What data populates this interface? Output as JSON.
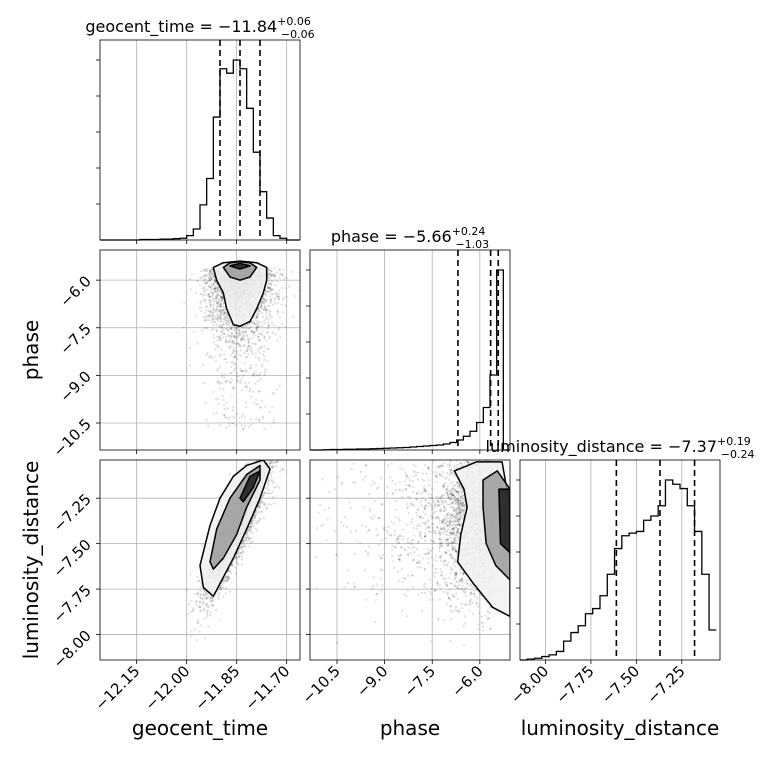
{
  "chart_data": {
    "type": "corner",
    "parameters": [
      "geocent_time",
      "phase",
      "luminosity_distance"
    ],
    "axis_labels": {
      "geocent_time": "geocent_time",
      "phase": "phase",
      "luminosity_distance": "luminosity_distance"
    },
    "ranges": {
      "geocent_time": [
        -12.26,
        -11.66
      ],
      "phase": [
        -11.35,
        -5.05
      ],
      "luminosity_distance": [
        -8.14,
        -7.04
      ]
    },
    "ticks": {
      "geocent_time": [
        -12.15,
        -12.0,
        -11.85,
        -11.7
      ],
      "phase": [
        -10.5,
        -9.0,
        -7.5,
        -6.0
      ],
      "luminosity_distance": [
        -8.0,
        -7.75,
        -7.5,
        -7.25
      ]
    },
    "tick_labels": {
      "geocent_time": [
        "−12.15",
        "−12.00",
        "−11.85",
        "−11.70"
      ],
      "phase": [
        "−10.5",
        "−9.0",
        "−7.5",
        "−6.0"
      ],
      "luminosity_distance": [
        "−8.00",
        "−7.75",
        "−7.50",
        "−7.25"
      ]
    },
    "grid": true,
    "titles": {
      "geocent_time": {
        "name": "geocent_time",
        "median": "−11.84",
        "plus": "+0.06",
        "minus": "−0.06"
      },
      "phase": {
        "name": "phase",
        "median": "−5.66",
        "plus": "+0.24",
        "minus": "−1.03"
      },
      "luminosity_distance": {
        "name": "luminosity_distance",
        "median": "−7.37",
        "plus": "+0.19",
        "minus": "−0.24"
      }
    },
    "quantile_lines": {
      "geocent_time": [
        -11.9,
        -11.84,
        -11.78
      ],
      "phase": [
        -6.69,
        -5.66,
        -5.42
      ],
      "luminosity_distance": [
        -7.61,
        -7.37,
        -7.18
      ]
    },
    "histograms": {
      "geocent_time": {
        "edges": [
          -12.26,
          -12.24,
          -12.22,
          -12.2,
          -12.18,
          -12.16,
          -12.14,
          -12.12,
          -12.1,
          -12.08,
          -12.06,
          -12.04,
          -12.02,
          -12.0,
          -11.98,
          -11.96,
          -11.94,
          -11.92,
          -11.9,
          -11.88,
          -11.86,
          -11.84,
          -11.82,
          -11.8,
          -11.78,
          -11.76,
          -11.74,
          -11.72,
          -11.7,
          -11.68,
          -11.66
        ],
        "counts": [
          0,
          0,
          0,
          0,
          0,
          0,
          1,
          1,
          1,
          2,
          2,
          3,
          4,
          10,
          25,
          80,
          140,
          280,
          390,
          380,
          410,
          390,
          300,
          200,
          110,
          50,
          10,
          4,
          0,
          0
        ]
      },
      "phase": {
        "edges": [
          -11.35,
          -11.14,
          -10.93,
          -10.72,
          -10.51,
          -10.3,
          -10.09,
          -9.88,
          -9.67,
          -9.46,
          -9.25,
          -9.04,
          -8.83,
          -8.62,
          -8.41,
          -8.2,
          -7.99,
          -7.78,
          -7.57,
          -7.36,
          -7.15,
          -6.94,
          -6.73,
          -6.52,
          -6.31,
          -6.1,
          -5.89,
          -5.68,
          -5.47,
          -5.26,
          -5.05
        ],
        "counts": [
          0,
          0,
          1,
          2,
          2,
          3,
          3,
          4,
          4,
          5,
          6,
          7,
          8,
          9,
          10,
          12,
          14,
          16,
          18,
          20,
          24,
          30,
          40,
          55,
          75,
          110,
          170,
          300,
          720,
          0
        ]
      },
      "luminosity_distance": {
        "edges": [
          -8.14,
          -8.1,
          -8.06,
          -8.02,
          -7.98,
          -7.94,
          -7.9,
          -7.86,
          -7.82,
          -7.78,
          -7.74,
          -7.7,
          -7.66,
          -7.62,
          -7.58,
          -7.54,
          -7.5,
          -7.46,
          -7.42,
          -7.38,
          -7.34,
          -7.3,
          -7.26,
          -7.22,
          -7.18,
          -7.14,
          -7.1,
          -7.06
        ],
        "counts": [
          0,
          1,
          2,
          4,
          6,
          10,
          22,
          32,
          40,
          54,
          60,
          75,
          100,
          130,
          145,
          148,
          150,
          163,
          168,
          180,
          210,
          205,
          200,
          180,
          150,
          100,
          35
        ]
      }
    },
    "samples": {
      "geocent_time_vs_phase": {
        "x_center": -11.84,
        "x_spread": 0.05,
        "y_peak": -5.6,
        "y_tail_min": -10.7
      },
      "geocent_time_vs_luminosity_distance": {
        "x_center": -11.84,
        "y_center": -7.37,
        "correlation": 0.9
      },
      "phase_vs_luminosity_distance": {
        "x_peak": -5.6,
        "y_center": -7.37,
        "y_spread": 0.22
      }
    },
    "contours": {
      "geocent_time_vs_phase": [
        [
          [
            -11.92,
            -5.6
          ],
          [
            -11.91,
            -6.0
          ],
          [
            -11.89,
            -6.4
          ],
          [
            -11.88,
            -6.9
          ],
          [
            -11.86,
            -7.4
          ],
          [
            -11.84,
            -7.45
          ],
          [
            -11.81,
            -7.3
          ],
          [
            -11.79,
            -6.9
          ],
          [
            -11.77,
            -6.4
          ],
          [
            -11.76,
            -6.0
          ],
          [
            -11.76,
            -5.6
          ],
          [
            -11.79,
            -5.45
          ],
          [
            -11.84,
            -5.4
          ],
          [
            -11.89,
            -5.45
          ]
        ],
        [
          [
            -11.89,
            -5.6
          ],
          [
            -11.87,
            -5.9
          ],
          [
            -11.84,
            -6.0
          ],
          [
            -11.81,
            -5.9
          ],
          [
            -11.79,
            -5.6
          ],
          [
            -11.81,
            -5.45
          ],
          [
            -11.84,
            -5.42
          ],
          [
            -11.87,
            -5.45
          ]
        ],
        [
          [
            -11.87,
            -5.55
          ],
          [
            -11.84,
            -5.65
          ],
          [
            -11.81,
            -5.55
          ],
          [
            -11.84,
            -5.47
          ]
        ]
      ],
      "geocent_time_vs_luminosity_distance": [
        [
          [
            -11.96,
            -7.62
          ],
          [
            -11.93,
            -7.4
          ],
          [
            -11.9,
            -7.25
          ],
          [
            -11.86,
            -7.13
          ],
          [
            -11.82,
            -7.07
          ],
          [
            -11.77,
            -7.04
          ],
          [
            -11.75,
            -7.09
          ],
          [
            -11.78,
            -7.25
          ],
          [
            -11.82,
            -7.42
          ],
          [
            -11.86,
            -7.58
          ],
          [
            -11.9,
            -7.72
          ],
          [
            -11.92,
            -7.79
          ],
          [
            -11.95,
            -7.74
          ]
        ],
        [
          [
            -11.93,
            -7.6
          ],
          [
            -11.91,
            -7.42
          ],
          [
            -11.87,
            -7.25
          ],
          [
            -11.82,
            -7.12
          ],
          [
            -11.78,
            -7.07
          ],
          [
            -11.78,
            -7.15
          ],
          [
            -11.82,
            -7.3
          ],
          [
            -11.85,
            -7.45
          ],
          [
            -11.89,
            -7.58
          ],
          [
            -11.92,
            -7.64
          ]
        ],
        [
          [
            -11.84,
            -7.25
          ],
          [
            -11.81,
            -7.13
          ],
          [
            -11.78,
            -7.1
          ],
          [
            -11.8,
            -7.19
          ],
          [
            -11.83,
            -7.27
          ]
        ]
      ],
      "phase_vs_luminosity_distance": [
        [
          [
            -6.8,
            -7.1
          ],
          [
            -6.1,
            -7.05
          ],
          [
            -5.3,
            -7.05
          ],
          [
            -5.05,
            -7.3
          ],
          [
            -5.05,
            -7.9
          ],
          [
            -5.6,
            -7.85
          ],
          [
            -6.2,
            -7.72
          ],
          [
            -6.7,
            -7.6
          ],
          [
            -6.6,
            -7.45
          ],
          [
            -6.4,
            -7.3
          ],
          [
            -6.5,
            -7.2
          ]
        ],
        [
          [
            -5.9,
            -7.15
          ],
          [
            -5.45,
            -7.1
          ],
          [
            -5.05,
            -7.2
          ],
          [
            -5.05,
            -7.7
          ],
          [
            -5.5,
            -7.62
          ],
          [
            -5.8,
            -7.5
          ],
          [
            -5.9,
            -7.3
          ]
        ],
        [
          [
            -5.4,
            -7.2
          ],
          [
            -5.05,
            -7.2
          ],
          [
            -5.05,
            -7.55
          ],
          [
            -5.35,
            -7.5
          ]
        ]
      ]
    }
  }
}
